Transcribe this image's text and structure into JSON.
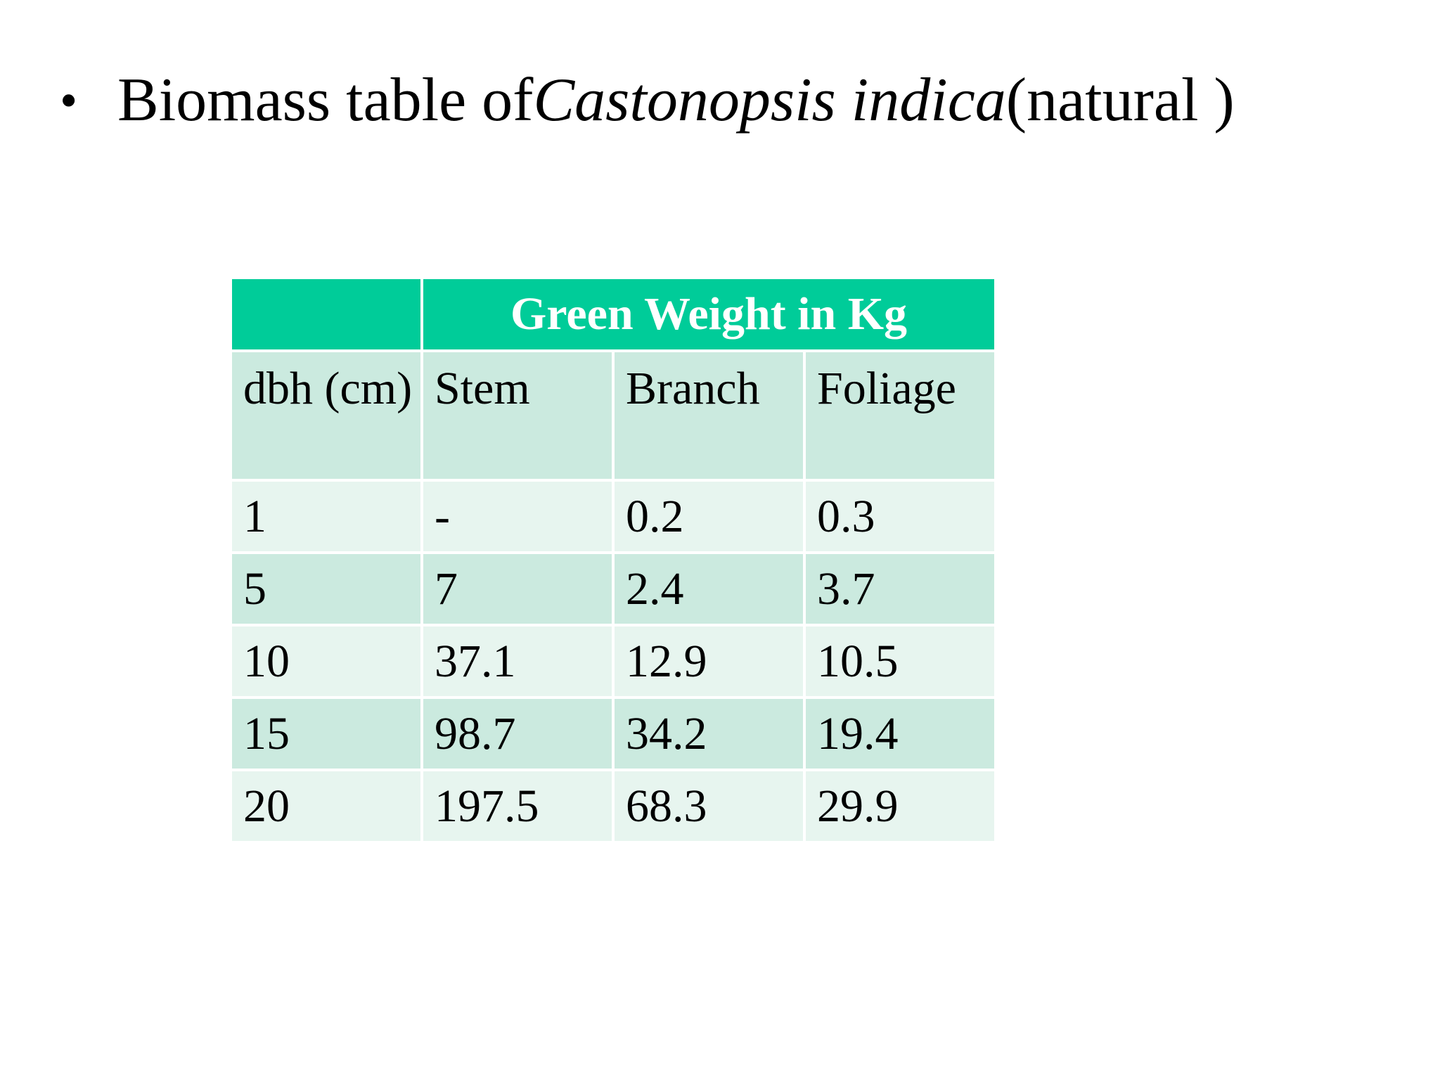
{
  "title": {
    "bullet": "•",
    "prefix": "Biomass table of ",
    "species": "Castonopsis indica",
    "suffix": " (natural )"
  },
  "table": {
    "group_header": "Green Weight in Kg",
    "columns": [
      "dbh (cm)",
      "Stem",
      "Branch",
      "Foliage"
    ],
    "rows": [
      [
        "1",
        "-",
        "0.2",
        "0.3"
      ],
      [
        "5",
        "7",
        "2.4",
        "3.7"
      ],
      [
        "10",
        "37.1",
        "12.9",
        "10.5"
      ],
      [
        "15",
        "98.7",
        "34.2",
        "19.4"
      ],
      [
        "20",
        "197.5",
        "68.3",
        "29.9"
      ]
    ]
  },
  "colors": {
    "header_bg": "#00cc99",
    "band_dark": "#cbeadf",
    "band_light": "#e7f5ef"
  }
}
